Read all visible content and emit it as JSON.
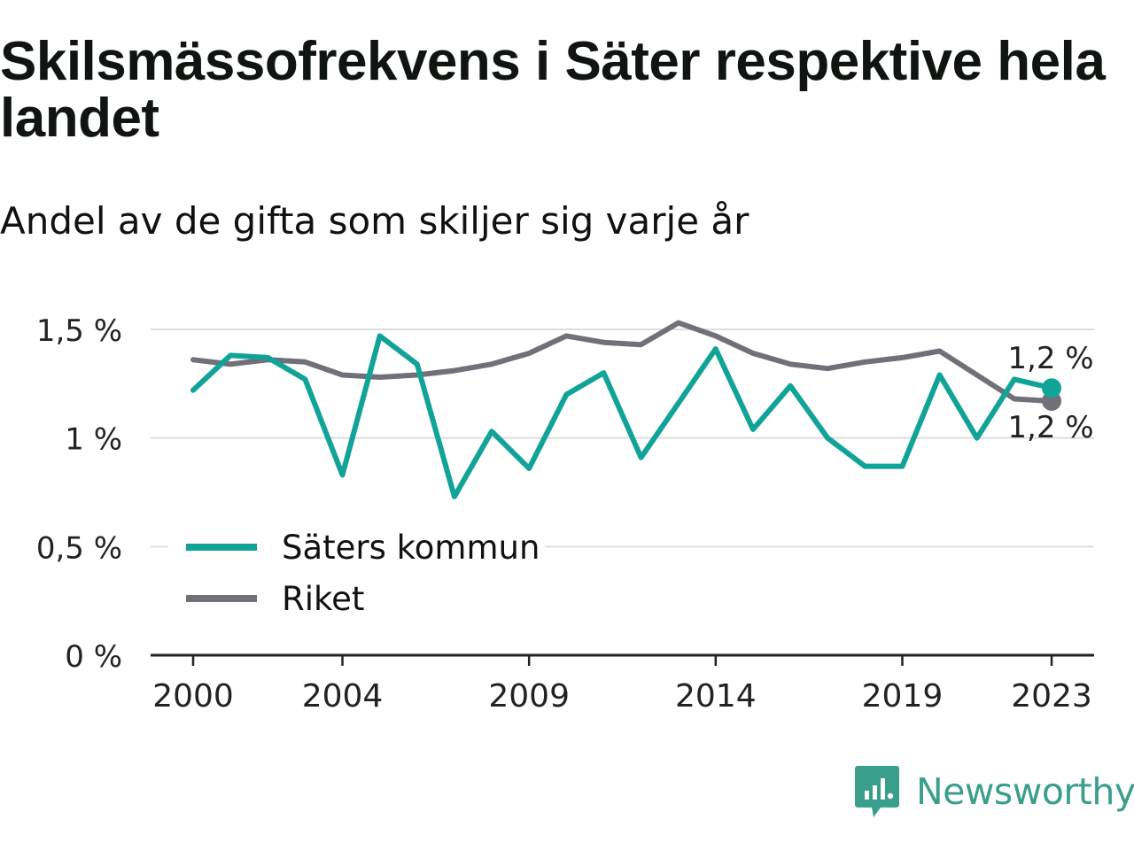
{
  "header": {
    "title": "Skilsmässofrekvens i Säter respektive hela landet",
    "subtitle": "Andel av de gifta som skiljer sig varje år"
  },
  "brand": {
    "name": "Newsworthy",
    "icon": "newsworthy-logo-icon",
    "color": "#3a9e8c"
  },
  "chart_data": {
    "type": "line",
    "x": [
      2000,
      2001,
      2002,
      2003,
      2004,
      2005,
      2006,
      2007,
      2008,
      2009,
      2010,
      2011,
      2012,
      2013,
      2014,
      2015,
      2016,
      2017,
      2018,
      2019,
      2020,
      2021,
      2022,
      2023
    ],
    "series": [
      {
        "name": "Säters kommun",
        "color": "#11a398",
        "values": [
          1.22,
          1.38,
          1.37,
          1.27,
          0.83,
          1.47,
          1.34,
          0.73,
          1.03,
          0.86,
          1.2,
          1.3,
          0.91,
          1.16,
          1.41,
          1.04,
          1.24,
          1.0,
          0.87,
          0.87,
          1.29,
          1.0,
          1.27,
          1.23
        ]
      },
      {
        "name": "Riket",
        "color": "#717079",
        "values": [
          1.36,
          1.34,
          1.36,
          1.35,
          1.29,
          1.28,
          1.29,
          1.31,
          1.34,
          1.39,
          1.47,
          1.44,
          1.43,
          1.53,
          1.47,
          1.39,
          1.34,
          1.32,
          1.35,
          1.37,
          1.4,
          1.29,
          1.18,
          1.17
        ]
      }
    ],
    "yticks": [
      0,
      0.5,
      1,
      1.5
    ],
    "ytick_labels": [
      "0 %",
      "0,5 %",
      "1 %",
      "1,5 %"
    ],
    "xticks": [
      2000,
      2004,
      2009,
      2014,
      2019,
      2023
    ],
    "xtick_labels": [
      "2000",
      "2004",
      "2009",
      "2014",
      "2019",
      "2023"
    ],
    "ylim": [
      0,
      1.6
    ],
    "end_labels": [
      "1,2 %",
      "1,2 %"
    ],
    "legend": {
      "placement": "bottom-left",
      "entries": [
        "Säters kommun",
        "Riket"
      ]
    },
    "grid": true
  }
}
